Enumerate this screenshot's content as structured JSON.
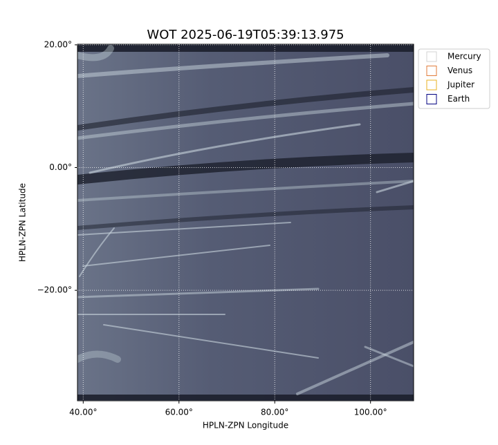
{
  "chart_data": {
    "type": "image",
    "title": "WOT 2025-06-19T05:39:13.975",
    "x_label": "HPLN-ZPN Longitude",
    "y_label": "HPLN-ZPN Latitude",
    "xlim": [
      38.8,
      109
    ],
    "ylim": [
      -38,
      20.1
    ],
    "xticks": [
      {
        "value": 40,
        "label": "40.00°"
      },
      {
        "value": 60,
        "label": "60.00°"
      },
      {
        "value": 80,
        "label": "80.00°"
      },
      {
        "value": 100,
        "label": "100.00°"
      }
    ],
    "yticks": [
      {
        "value": 20,
        "label": "20.00°"
      },
      {
        "value": 0,
        "label": "0.00°"
      },
      {
        "value": -20,
        "label": "−20.00°"
      }
    ],
    "grid": true,
    "legend_position": "outside-upper-right",
    "series": [
      {
        "name": "Mercury",
        "color": "#d3d3d3"
      },
      {
        "name": "Venus",
        "color": "#e07b39"
      },
      {
        "name": "Jupiter",
        "color": "#e8b020"
      },
      {
        "name": "Earth",
        "color": "#000080"
      }
    ]
  }
}
